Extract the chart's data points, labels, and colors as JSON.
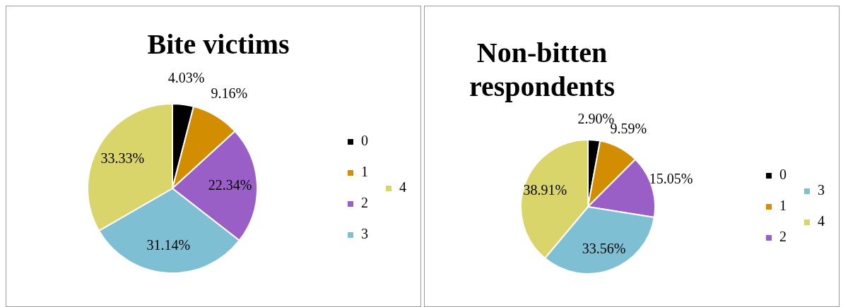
{
  "chart_data": [
    {
      "type": "pie",
      "title": "Bite victims",
      "categories": [
        "0",
        "1",
        "2",
        "3",
        "4"
      ],
      "values": [
        4.03,
        9.16,
        22.34,
        31.14,
        33.33
      ],
      "value_labels": [
        "4.03%",
        "9.16%",
        "22.34%",
        "31.14%",
        "33.33%"
      ],
      "colors": [
        "#000000",
        "#d38d00",
        "#9a5fc6",
        "#7fbfd4",
        "#d9d56a"
      ],
      "legend": "right"
    },
    {
      "type": "pie",
      "title": "Non-bitten respondents",
      "categories": [
        "0",
        "1",
        "2",
        "3",
        "4"
      ],
      "values": [
        2.9,
        9.59,
        15.05,
        33.56,
        38.91
      ],
      "value_labels": [
        "2.90%",
        "9.59%",
        "15.05%",
        "33.56%",
        "38.91%"
      ],
      "colors": [
        "#000000",
        "#d38d00",
        "#9a5fc6",
        "#7fbfd4",
        "#d9d56a"
      ],
      "legend": "right"
    }
  ]
}
